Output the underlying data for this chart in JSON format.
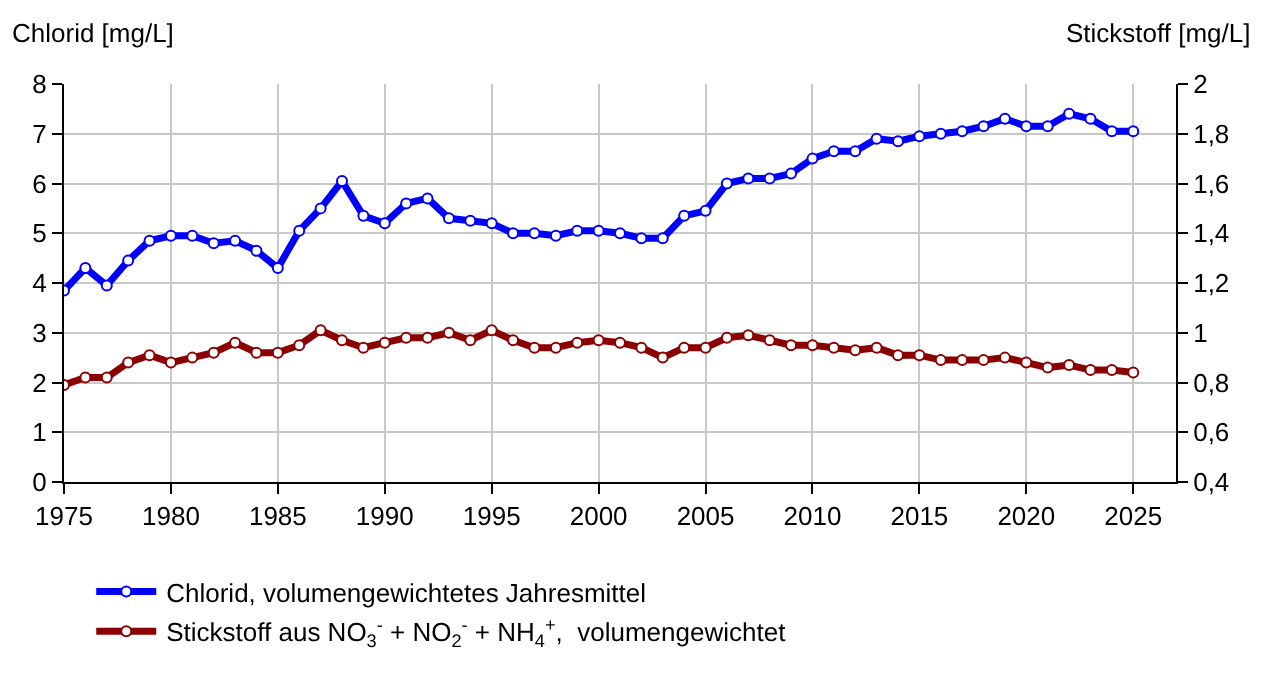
{
  "chart_data": {
    "type": "line",
    "ylabel": "Chlorid [mg/L]",
    "y2label": "Stickstoff [mg/L]",
    "x": [
      1975,
      1976,
      1977,
      1978,
      1979,
      1980,
      1981,
      1982,
      1983,
      1984,
      1985,
      1986,
      1987,
      1988,
      1989,
      1990,
      1991,
      1992,
      1993,
      1994,
      1995,
      1996,
      1997,
      1998,
      1999,
      2000,
      2001,
      2002,
      2003,
      2004,
      2005,
      2006,
      2007,
      2008,
      2009,
      2010,
      2011,
      2012,
      2013,
      2014,
      2015,
      2016,
      2017,
      2018,
      2019,
      2020,
      2021,
      2022,
      2023,
      2024,
      2025
    ],
    "series": [
      {
        "name": "Chlorid, volumengewichtetes Jahresmittel",
        "color": "#0000ff",
        "values": [
          3.85,
          4.3,
          3.95,
          4.45,
          4.85,
          4.95,
          4.95,
          4.8,
          4.85,
          4.65,
          4.3,
          5.05,
          5.5,
          6.05,
          5.35,
          5.2,
          5.6,
          5.7,
          5.3,
          5.25,
          5.2,
          5.0,
          5.0,
          4.95,
          5.05,
          5.05,
          5.0,
          4.9,
          4.9,
          5.35,
          5.45,
          6.0,
          6.1,
          6.1,
          6.2,
          6.5,
          6.65,
          6.65,
          6.9,
          6.85,
          6.95,
          7.0,
          7.05,
          7.15,
          7.3,
          7.15,
          7.15,
          7.4,
          7.3,
          7.05,
          7.05
        ]
      },
      {
        "name": "Stickstoff aus NO$_{3}$$^{-}$ + NO$_{2}$$^{-}$ + NH$_{4}$$^{+}$,  volumengewichtet",
        "color": "#8b0000",
        "axis": "y2",
        "values": [
          0.79,
          0.82,
          0.82,
          0.88,
          0.91,
          0.88,
          0.9,
          0.92,
          0.96,
          0.92,
          0.92,
          0.95,
          1.01,
          0.97,
          0.94,
          0.96,
          0.98,
          0.98,
          1.0,
          0.97,
          1.01,
          0.97,
          0.94,
          0.94,
          0.96,
          0.97,
          0.96,
          0.94,
          0.9,
          0.94,
          0.94,
          0.98,
          0.99,
          0.97,
          0.95,
          0.95,
          0.94,
          0.93,
          0.94,
          0.91,
          0.91,
          0.89,
          0.89,
          0.89,
          0.9,
          0.88,
          0.86,
          0.87,
          0.85,
          0.85,
          0.84
        ]
      }
    ],
    "xlim": [
      1975,
      2027
    ],
    "xticks": [
      1975,
      1980,
      1985,
      1990,
      1995,
      2000,
      2005,
      2010,
      2015,
      2020,
      2025
    ],
    "ylim": [
      0,
      8
    ],
    "yticks": [
      0,
      1,
      2,
      3,
      4,
      5,
      6,
      7,
      8
    ],
    "y2lim": [
      0.4,
      2
    ],
    "y2ticks": [
      {
        "value": 0.4,
        "label": "0,4"
      },
      {
        "value": 0.6,
        "label": "0,6"
      },
      {
        "value": 0.8,
        "label": "0,8"
      },
      1,
      {
        "value": 1.2,
        "label": "1,2"
      },
      {
        "value": 1.4,
        "label": "1,4"
      },
      {
        "value": 1.6,
        "label": "1,6"
      },
      {
        "value": 1.8,
        "label": "1,8"
      },
      2
    ],
    "grid": true,
    "legend": "bottom",
    "marker": "circle",
    "line_style": "solid"
  }
}
